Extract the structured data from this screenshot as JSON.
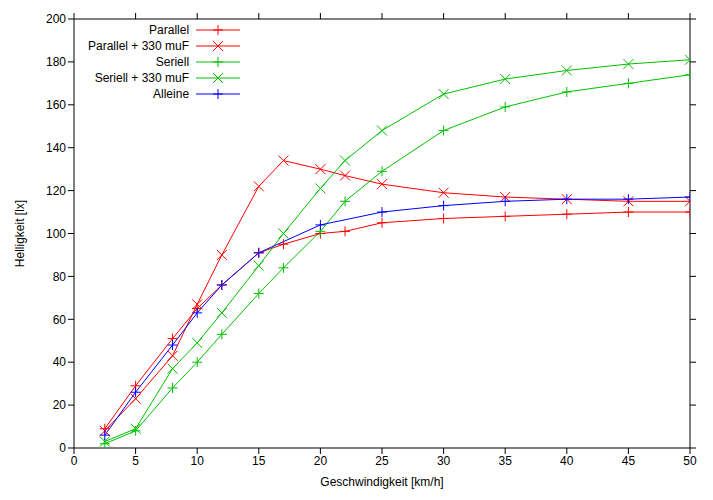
{
  "chart_data": {
    "type": "line",
    "x_label": "Geschwindigkeit [km/h]",
    "y_label": "Helligkeit [lx]",
    "xlim": [
      0,
      50
    ],
    "xticks": [
      0,
      5,
      10,
      15,
      20,
      25,
      30,
      35,
      40,
      45,
      50
    ],
    "ylim": [
      0,
      200
    ],
    "yticks": [
      0,
      20,
      40,
      60,
      80,
      100,
      120,
      140,
      160,
      180,
      200
    ],
    "grid": false,
    "legend": "upper left",
    "series": [
      {
        "name": "Parallel",
        "color": "#ff0000",
        "marker": "plus",
        "x": [
          2.5,
          5,
          8,
          10,
          12,
          15,
          17,
          20,
          22,
          25,
          30,
          35,
          40,
          45,
          50
        ],
        "values": [
          9,
          29,
          51,
          65,
          76,
          91,
          95,
          100,
          101,
          105,
          107,
          108,
          109,
          110,
          110
        ]
      },
      {
        "name": "Parallel + 330 muF",
        "color": "#ff0000",
        "marker": "cross",
        "x": [
          2.5,
          5,
          8,
          10,
          12,
          15,
          17,
          20,
          22,
          25,
          30,
          35,
          40,
          45,
          50
        ],
        "values": [
          8,
          23,
          43,
          67,
          90,
          122,
          134,
          130,
          127,
          123,
          119,
          117,
          116,
          115,
          115
        ]
      },
      {
        "name": "Seriell",
        "color": "#00c000",
        "marker": "plus",
        "x": [
          2.5,
          5,
          8,
          10,
          12,
          15,
          17,
          20,
          22,
          25,
          30,
          35,
          40,
          45,
          50
        ],
        "values": [
          2,
          8,
          28,
          40,
          53,
          72,
          84,
          101,
          115,
          129,
          148,
          159,
          166,
          170,
          174
        ]
      },
      {
        "name": "Seriell + 330 muF",
        "color": "#00c000",
        "marker": "cross",
        "x": [
          2.5,
          5,
          8,
          10,
          12,
          15,
          17,
          20,
          22,
          25,
          30,
          35,
          40,
          45,
          50
        ],
        "values": [
          3,
          9,
          37,
          49,
          63,
          85,
          100,
          121,
          134,
          148,
          165,
          172,
          176,
          179,
          181
        ]
      },
      {
        "name": "Alleine",
        "color": "#0000ff",
        "marker": "plus",
        "x": [
          2.5,
          5,
          8,
          10,
          12,
          15,
          20,
          25,
          30,
          35,
          40,
          45,
          50
        ],
        "values": [
          6,
          26,
          48,
          63,
          76,
          91,
          104,
          110,
          113,
          115,
          116,
          116,
          117
        ]
      }
    ]
  }
}
